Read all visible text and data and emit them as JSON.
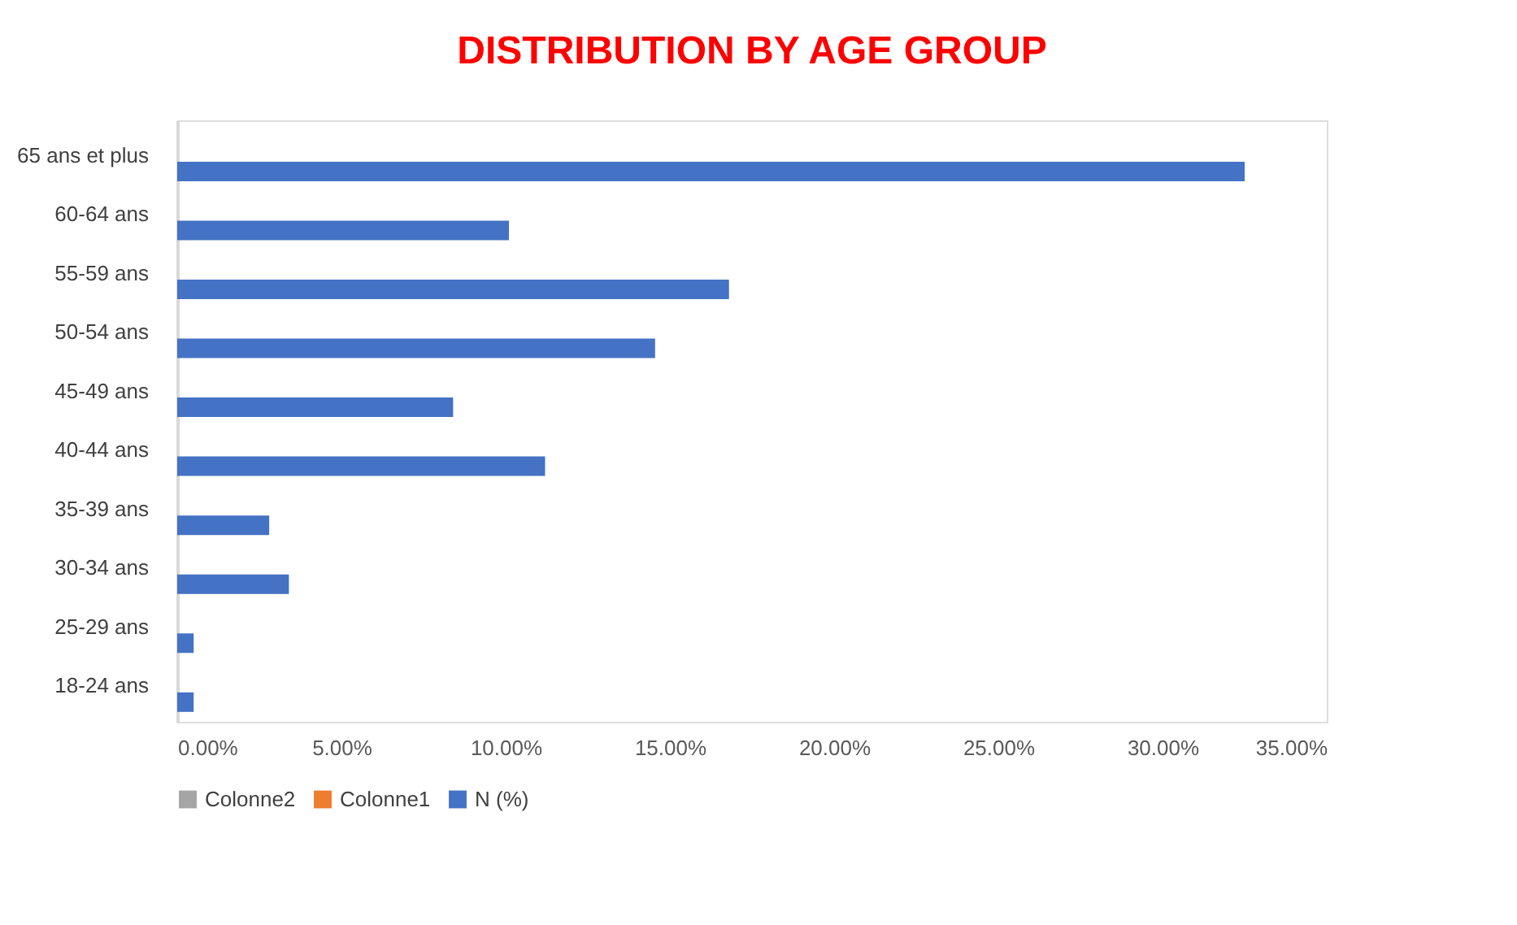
{
  "chart_data": {
    "type": "bar",
    "orientation": "horizontal",
    "title": "DISTRIBUTION BY AGE GROUP",
    "categories": [
      "65 ans et plus",
      "60-64 ans",
      "55-59 ans",
      "50-54 ans",
      "45-49 ans",
      "40-44 ans",
      "35-39 ans",
      "30-34 ans",
      "25-29 ans",
      "18-24 ans"
    ],
    "series": [
      {
        "name": "Colonne2",
        "color": "#a5a5a5",
        "values": [
          null,
          null,
          null,
          null,
          null,
          null,
          null,
          null,
          null,
          null
        ]
      },
      {
        "name": "Colonne1",
        "color": "#ed7d31",
        "values": [
          null,
          null,
          null,
          null,
          null,
          null,
          null,
          null,
          null,
          null
        ]
      },
      {
        "name": "N (%)",
        "color": "#4472c4",
        "values": [
          32.5,
          10.1,
          16.8,
          14.55,
          8.4,
          11.2,
          2.8,
          3.4,
          0.5,
          0.5
        ]
      }
    ],
    "xlim": [
      0,
      35
    ],
    "xticks": [
      {
        "value": 0,
        "label": "0.00%"
      },
      {
        "value": 5,
        "label": "5.00%"
      },
      {
        "value": 10,
        "label": "10.00%"
      },
      {
        "value": 15,
        "label": "15.00%"
      },
      {
        "value": 20,
        "label": "20.00%"
      },
      {
        "value": 25,
        "label": "25.00%"
      },
      {
        "value": 30,
        "label": "30.00%"
      },
      {
        "value": 35,
        "label": "35.00%"
      }
    ],
    "grid": false,
    "legend": "bottom"
  }
}
